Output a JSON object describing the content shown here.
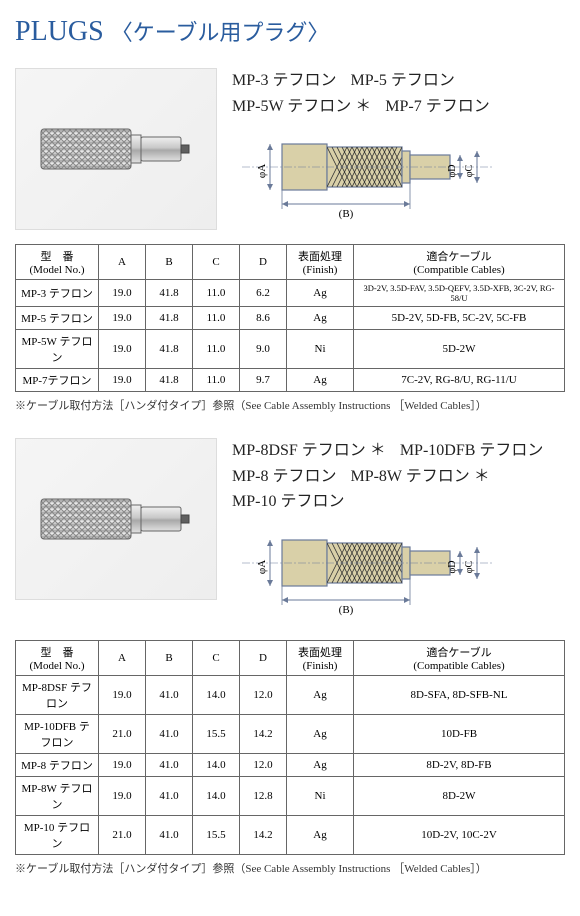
{
  "page": {
    "title_en": "PLUGS",
    "title_jp": "〈ケーブル用プラグ〉"
  },
  "sections": [
    {
      "models": [
        {
          "name": "MP-3",
          "suffix": "テフロン",
          "star": false
        },
        {
          "name": "MP-5",
          "suffix": "テフロン",
          "star": false
        },
        {
          "name": "MP-5W",
          "suffix": "テフロン",
          "star": true
        },
        {
          "name": "MP-7",
          "suffix": "テフロン",
          "star": false
        }
      ],
      "diagram": {
        "labels": {
          "a": "φA",
          "b": "(B)",
          "c": "φC",
          "d": "φD"
        },
        "body_color": "#d9d0a8",
        "hatch_color": "#333333",
        "line_color": "#6a7a99"
      },
      "table": {
        "headers": {
          "model": "型　番\n(Model No.)",
          "a": "A",
          "b": "B",
          "c": "C",
          "d": "D",
          "finish": "表面処理\n(Finish)",
          "cables": "適合ケーブル\n(Compatible Cables)"
        },
        "rows": [
          {
            "model": "MP-3 テフロン",
            "a": "19.0",
            "b": "41.8",
            "c": "11.0",
            "d": "6.2",
            "finish": "Ag",
            "cables": "3D-2V, 3.5D-FAV, 3.5D-QEFV, 3.5D-XFB, 3C-2V, RG-58/U"
          },
          {
            "model": "MP-5 テフロン",
            "a": "19.0",
            "b": "41.8",
            "c": "11.0",
            "d": "8.6",
            "finish": "Ag",
            "cables": "5D-2V, 5D-FB, 5C-2V, 5C-FB"
          },
          {
            "model": "MP-5W テフロン",
            "a": "19.0",
            "b": "41.8",
            "c": "11.0",
            "d": "9.0",
            "finish": "Ni",
            "cables": "5D-2W"
          },
          {
            "model": "MP-7テフロン",
            "a": "19.0",
            "b": "41.8",
            "c": "11.0",
            "d": "9.7",
            "finish": "Ag",
            "cables": "7C-2V, RG-8/U, RG-11/U"
          }
        ]
      },
      "footnote": "※ケーブル取付方法［ハンダ付タイプ］参照（See Cable Assembly Instructions ［Welded Cables］）"
    },
    {
      "models": [
        {
          "name": "MP-8DSF",
          "suffix": "テフロン",
          "star": true
        },
        {
          "name": "MP-10DFB",
          "suffix": "テフロン",
          "star": false
        },
        {
          "name": "MP-8",
          "suffix": "テフロン",
          "star": false
        },
        {
          "name": "MP-8W",
          "suffix": "テフロン",
          "star": true
        },
        {
          "name": "MP-10",
          "suffix": "テフロン",
          "star": false
        }
      ],
      "diagram": {
        "labels": {
          "a": "φA",
          "b": "(B)",
          "c": "φC",
          "d": "φD"
        },
        "body_color": "#d9d0a8",
        "hatch_color": "#333333",
        "line_color": "#6a7a99"
      },
      "table": {
        "headers": {
          "model": "型　番\n(Model No.)",
          "a": "A",
          "b": "B",
          "c": "C",
          "d": "D",
          "finish": "表面処理\n(Finish)",
          "cables": "適合ケーブル\n(Compatible Cables)"
        },
        "rows": [
          {
            "model": "MP-8DSF テフロン",
            "a": "19.0",
            "b": "41.0",
            "c": "14.0",
            "d": "12.0",
            "finish": "Ag",
            "cables": "8D-SFA, 8D-SFB-NL"
          },
          {
            "model": "MP-10DFB テフロン",
            "a": "21.0",
            "b": "41.0",
            "c": "15.5",
            "d": "14.2",
            "finish": "Ag",
            "cables": "10D-FB"
          },
          {
            "model": "MP-8 テフロン",
            "a": "19.0",
            "b": "41.0",
            "c": "14.0",
            "d": "12.0",
            "finish": "Ag",
            "cables": "8D-2V, 8D-FB"
          },
          {
            "model": "MP-8W テフロン",
            "a": "19.0",
            "b": "41.0",
            "c": "14.0",
            "d": "12.8",
            "finish": "Ni",
            "cables": "8D-2W"
          },
          {
            "model": "MP-10 テフロン",
            "a": "21.0",
            "b": "41.0",
            "c": "15.5",
            "d": "14.2",
            "finish": "Ag",
            "cables": "10D-2V, 10C-2V"
          }
        ]
      },
      "footnote": "※ケーブル取付方法［ハンダ付タイプ］参照（See Cable Assembly Instructions ［Welded Cables］）"
    }
  ]
}
